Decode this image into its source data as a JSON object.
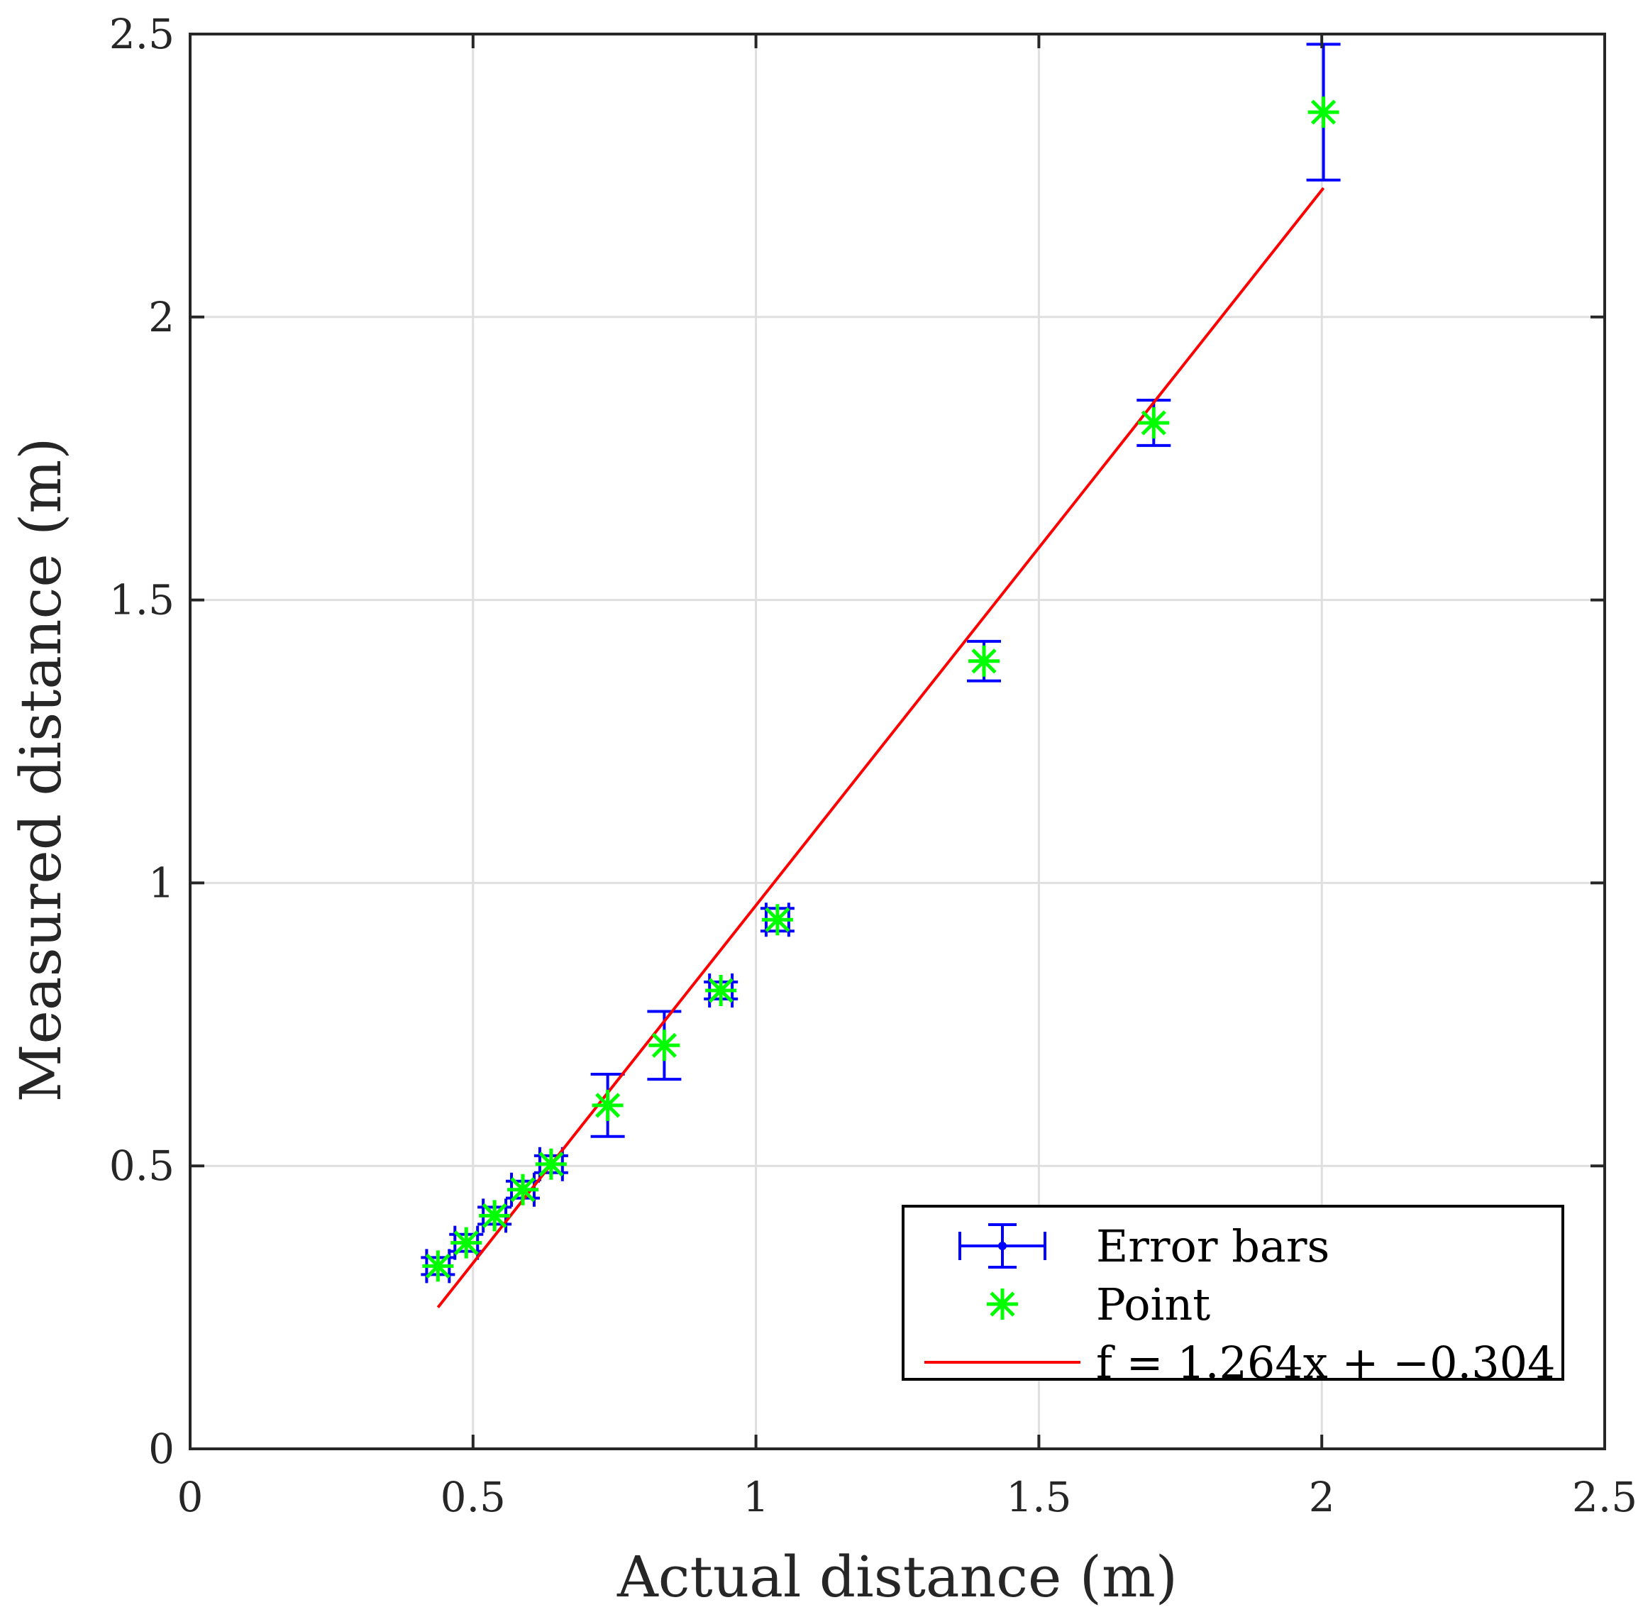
{
  "chart_data": {
    "type": "scatter",
    "title": "",
    "xlabel": "Actual distance (m)",
    "ylabel": "Measured distance (m)",
    "xlim": [
      0,
      2.5
    ],
    "ylim": [
      0,
      2.5
    ],
    "x_ticks": [
      0,
      0.5,
      1,
      1.5,
      2,
      2.5
    ],
    "y_ticks": [
      0,
      0.5,
      1,
      1.5,
      2,
      2.5
    ],
    "x_tick_labels": [
      "0",
      "0.5",
      "1",
      "1.5",
      "2",
      "2.5"
    ],
    "y_tick_labels": [
      "0",
      "0.5",
      "1",
      "1.5",
      "2",
      "2.5"
    ],
    "grid": true,
    "legend_position": "bottom-right",
    "colors": {
      "error_bars": "#0000ff",
      "points": "#00ff00",
      "fit": "#ff0000",
      "grid": "#dfdfdf",
      "axes": "#262626"
    },
    "series": [
      {
        "name": "Error bars",
        "kind": "errorbar",
        "x": [
          0.438,
          0.488,
          0.538,
          0.588,
          0.638,
          0.738,
          0.838,
          0.938,
          1.038,
          1.403,
          1.703,
          2.003
        ],
        "y": [
          0.323,
          0.364,
          0.412,
          0.458,
          0.503,
          0.607,
          0.713,
          0.81,
          0.935,
          1.392,
          1.813,
          2.362
        ],
        "yneg": [
          0.015,
          0.015,
          0.015,
          0.015,
          0.015,
          0.055,
          0.06,
          0.015,
          0.02,
          0.035,
          0.04,
          0.12
        ],
        "ypos": [
          0.015,
          0.015,
          0.015,
          0.015,
          0.015,
          0.055,
          0.06,
          0.015,
          0.02,
          0.035,
          0.04,
          0.12
        ],
        "xneg": [
          0.02,
          0.02,
          0.02,
          0.02,
          0.02,
          0.0,
          0.0,
          0.02,
          0.02,
          0.0,
          0.0,
          0.0
        ],
        "xpos": [
          0.02,
          0.02,
          0.02,
          0.02,
          0.02,
          0.0,
          0.0,
          0.02,
          0.02,
          0.0,
          0.0,
          0.0
        ]
      },
      {
        "name": "Point",
        "kind": "scatter",
        "marker": "asterisk",
        "x": [
          0.438,
          0.488,
          0.538,
          0.588,
          0.638,
          0.738,
          0.838,
          0.938,
          1.038,
          1.403,
          1.703,
          2.003
        ],
        "y": [
          0.323,
          0.364,
          0.412,
          0.458,
          0.503,
          0.607,
          0.713,
          0.81,
          0.935,
          1.392,
          1.813,
          2.362
        ]
      },
      {
        "name": "f = 1.264x + −0.304",
        "kind": "line",
        "slope": 1.264,
        "intercept": -0.304,
        "x": [
          0.438,
          2.003
        ],
        "y": [
          0.25,
          2.228
        ]
      }
    ]
  }
}
